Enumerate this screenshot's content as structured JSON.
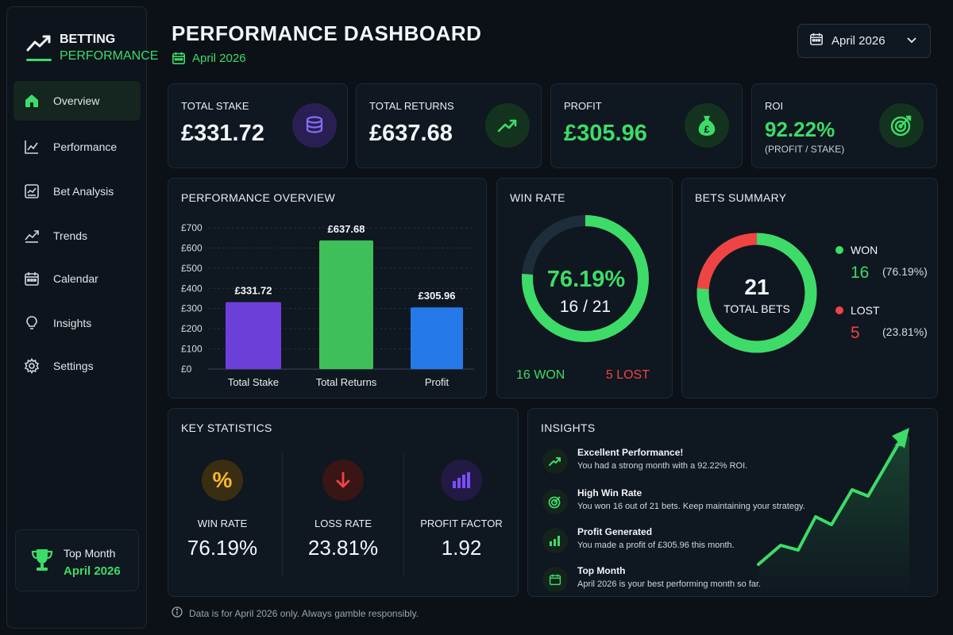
{
  "brand": {
    "line1": "BETTING",
    "line2": "PERFORMANCE"
  },
  "sidebar": {
    "items": [
      {
        "label": "Overview",
        "icon": "home-icon",
        "active": true
      },
      {
        "label": "Performance",
        "icon": "line-chart-icon"
      },
      {
        "label": "Bet Analysis",
        "icon": "analysis-icon"
      },
      {
        "label": "Trends",
        "icon": "trends-icon"
      },
      {
        "label": "Calendar",
        "icon": "calendar-icon"
      },
      {
        "label": "Insights",
        "icon": "lightbulb-icon"
      },
      {
        "label": "Settings",
        "icon": "gear-icon"
      }
    ],
    "top_month": {
      "label": "Top Month",
      "value": "April 2026"
    }
  },
  "header": {
    "title": "PERFORMANCE DASHBOARD",
    "date": "April 2026",
    "month_select": "April 2026"
  },
  "kpis": [
    {
      "label": "TOTAL STAKE",
      "value": "£331.72",
      "icon": "coins-icon"
    },
    {
      "label": "TOTAL RETURNS",
      "value": "£637.68",
      "icon": "trend-up-icon"
    },
    {
      "label": "PROFIT",
      "value": "£305.96",
      "icon": "money-bag-icon"
    },
    {
      "label": "ROI",
      "value": "92.22%",
      "sub": "(PROFIT / STAKE)",
      "icon": "target-icon"
    }
  ],
  "performance_overview": {
    "title": "PERFORMANCE OVERVIEW"
  },
  "chart_data": {
    "type": "bar",
    "categories": [
      "Total Stake",
      "Total Returns",
      "Profit"
    ],
    "values": [
      331.72,
      637.68,
      305.96
    ],
    "data_labels": [
      "£331.72",
      "£637.68",
      "£305.96"
    ],
    "colors": [
      "#6d3fd9",
      "#3fbf59",
      "#2579e8"
    ],
    "ylim": [
      0,
      700
    ],
    "yticks": [
      "£0",
      "£100",
      "£200",
      "£300",
      "£400",
      "£500",
      "£600",
      "£700"
    ],
    "grid": true
  },
  "win_rate": {
    "title": "WIN RATE",
    "percent": "76.19%",
    "fraction": "16 / 21",
    "value": 0.7619,
    "won_label": "16 WON",
    "lost_label": "5 LOST"
  },
  "bets_summary": {
    "title": "BETS SUMMARY",
    "total": "21",
    "total_label": "TOTAL BETS",
    "won": {
      "label": "WON",
      "count": "16",
      "pct": "(76.19%)",
      "value": 16,
      "color": "#3ddc68"
    },
    "lost": {
      "label": "LOST",
      "count": "5",
      "pct": "(23.81%)",
      "value": 5,
      "color": "#ef4444"
    }
  },
  "key_statistics": {
    "title": "KEY STATISTICS",
    "items": [
      {
        "label": "WIN RATE",
        "value": "76.19%",
        "icon": "percent-icon",
        "color": "#f5b82e"
      },
      {
        "label": "LOSS RATE",
        "value": "23.81%",
        "icon": "arrow-down-icon",
        "color": "#ef4444"
      },
      {
        "label": "PROFIT FACTOR",
        "value": "1.92",
        "icon": "bar-chart-icon",
        "color": "#7c4dff"
      }
    ]
  },
  "insights": {
    "title": "INSIGHTS",
    "items": [
      {
        "title": "Excellent Performance!",
        "desc": "You had a strong month with a 92.22% ROI.",
        "icon": "trend-up-icon"
      },
      {
        "title": "High Win Rate",
        "desc": "You won 16 out of 21 bets. Keep maintaining your strategy.",
        "icon": "target-icon"
      },
      {
        "title": "Profit Generated",
        "desc": "You made a profit of £305.96 this month.",
        "icon": "bar-chart-icon"
      },
      {
        "title": "Top Month",
        "desc": "April 2026 is your best performing month so far.",
        "icon": "calendar-icon"
      }
    ]
  },
  "footer": {
    "note": "Data is for April 2026 only. Always gamble responsibly."
  }
}
